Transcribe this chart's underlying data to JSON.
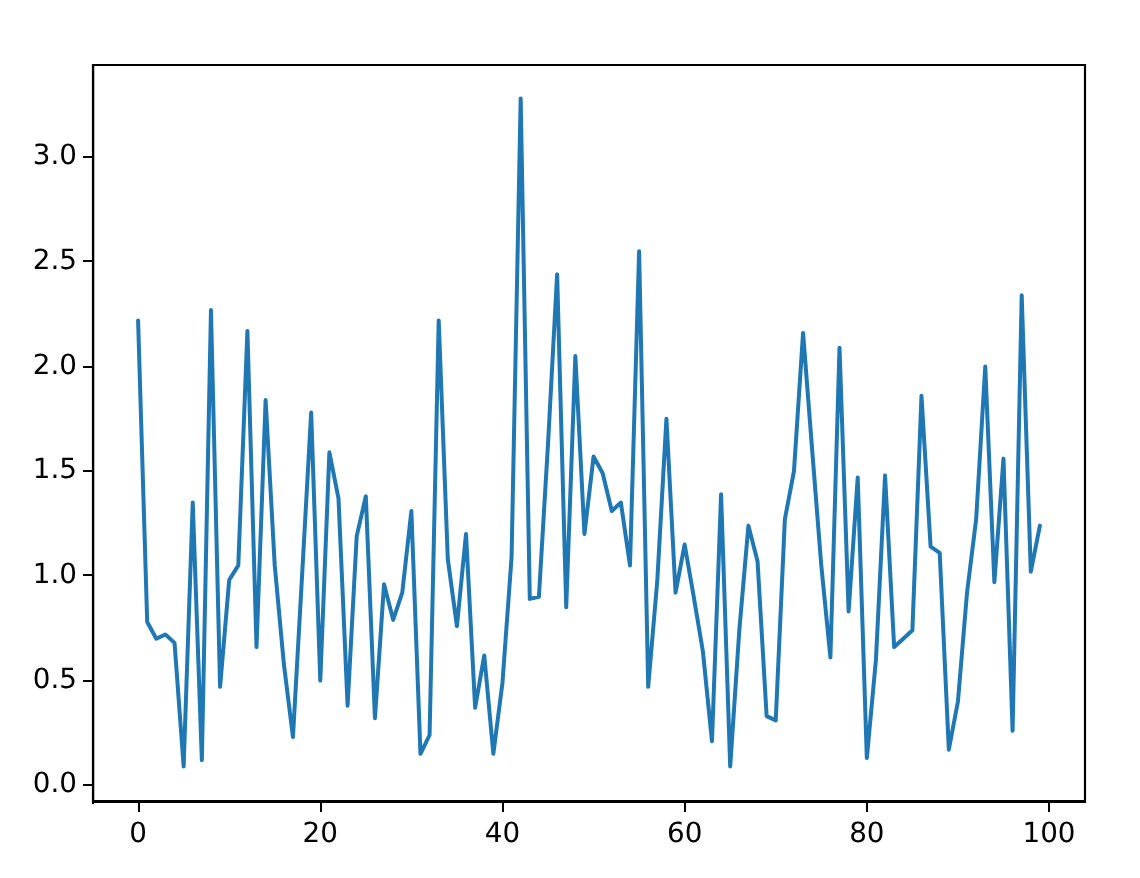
{
  "chart_data": {
    "type": "line",
    "color": "#1f77b4",
    "x": [
      0,
      1,
      2,
      3,
      4,
      5,
      6,
      7,
      8,
      9,
      10,
      11,
      12,
      13,
      14,
      15,
      16,
      17,
      18,
      19,
      20,
      21,
      22,
      23,
      24,
      25,
      26,
      27,
      28,
      29,
      30,
      31,
      32,
      33,
      34,
      35,
      36,
      37,
      38,
      39,
      40,
      41,
      42,
      43,
      44,
      45,
      46,
      47,
      48,
      49,
      50,
      51,
      52,
      53,
      54,
      55,
      56,
      57,
      58,
      59,
      60,
      61,
      62,
      63,
      64,
      65,
      66,
      67,
      68,
      69,
      70,
      71,
      72,
      73,
      74,
      75,
      76,
      77,
      78,
      79,
      80,
      81,
      82,
      83,
      84,
      85,
      86,
      87,
      88,
      89,
      90,
      91,
      92,
      93,
      94,
      95,
      96,
      97,
      98,
      99
    ],
    "values": [
      2.22,
      0.78,
      0.7,
      0.72,
      0.68,
      0.09,
      1.35,
      0.12,
      2.27,
      0.47,
      0.98,
      1.05,
      2.17,
      0.66,
      1.84,
      1.05,
      0.58,
      0.23,
      1.0,
      1.78,
      0.5,
      1.59,
      1.37,
      0.38,
      1.19,
      1.38,
      0.32,
      0.96,
      0.79,
      0.92,
      1.31,
      0.15,
      0.24,
      2.22,
      1.08,
      0.76,
      1.2,
      0.37,
      0.62,
      0.15,
      0.49,
      1.09,
      3.28,
      0.89,
      0.9,
      1.63,
      2.44,
      0.85,
      2.05,
      1.2,
      1.57,
      1.49,
      1.31,
      1.35,
      1.05,
      2.55,
      0.47,
      0.98,
      1.75,
      0.92,
      1.15,
      0.9,
      0.64,
      0.21,
      1.39,
      0.09,
      0.74,
      1.24,
      1.07,
      0.33,
      0.31,
      1.27,
      1.5,
      2.16,
      1.6,
      1.05,
      0.61,
      2.09,
      0.83,
      1.47,
      0.13,
      0.6,
      1.48,
      0.66,
      0.7,
      0.74,
      1.86,
      1.14,
      1.11,
      0.17,
      0.4,
      0.92,
      1.27,
      2.0,
      0.97,
      1.56,
      0.26,
      2.34,
      1.02,
      1.24
    ],
    "xlim": [
      -4.95,
      103.95
    ],
    "xticks": [
      0,
      20,
      40,
      60,
      80,
      100
    ],
    "ylim": [
      -0.08,
      3.44
    ],
    "yticks": [
      {
        "value": 0,
        "label": "0.0"
      },
      0.5,
      {
        "value": 1,
        "label": "1.0"
      },
      1.5,
      {
        "value": 2,
        "label": "2.0"
      },
      2.5,
      {
        "value": 3,
        "label": "3.0"
      }
    ],
    "grid": false,
    "legend": false
  }
}
